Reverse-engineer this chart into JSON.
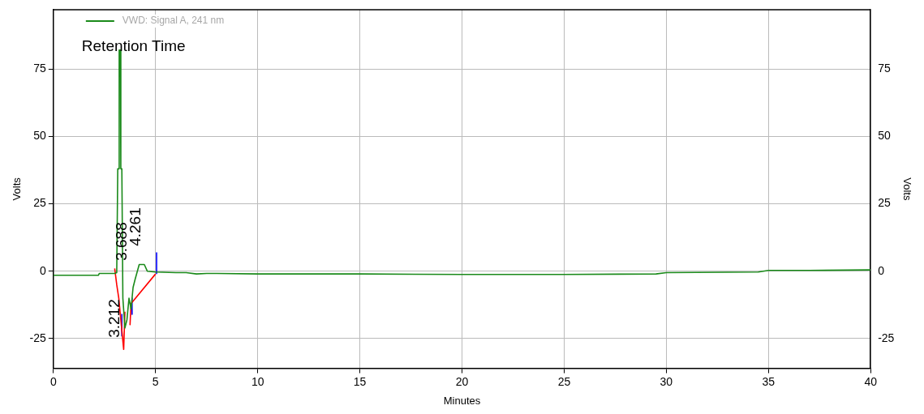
{
  "chart_data": {
    "type": "line",
    "xlabel": "Minutes",
    "ylabel": "Volts",
    "y2label": "Volts",
    "xlim": [
      0,
      40
    ],
    "xticks": [
      0,
      5,
      10,
      15,
      20,
      25,
      30,
      35,
      40
    ],
    "ylim": [
      -36,
      97
    ],
    "yticks": [
      -25,
      0,
      25,
      50,
      75
    ],
    "y2lim": [
      -36,
      97
    ],
    "y2ticks": [
      -25,
      0,
      25,
      50,
      75
    ],
    "grid": true,
    "legend": "top left",
    "marker": "none",
    "line_style": "solid",
    "series": [
      {
        "name": "VWD: Signal A, 241 nm",
        "color": "#1a8a1a",
        "x": [
          0,
          2.2,
          2.25,
          3.0,
          3.1,
          3.15,
          3.2,
          3.22,
          3.28,
          3.3,
          3.35,
          3.4,
          3.5,
          3.6,
          3.7,
          3.8,
          3.9,
          4.0,
          4.2,
          4.45,
          4.6,
          5.0,
          6,
          6.5,
          7,
          7.5,
          8,
          10,
          15,
          20,
          25,
          29.5,
          30,
          34.5,
          35,
          37,
          40
        ],
        "values": [
          -1.5,
          -1.5,
          -0.8,
          -0.8,
          -0.5,
          38,
          38,
          82,
          82,
          38,
          38,
          -10,
          -21,
          -18,
          -10,
          -14,
          -6,
          -3,
          2.5,
          2.5,
          0,
          -0.3,
          -0.5,
          -0.5,
          -1,
          -0.8,
          -0.8,
          -1,
          -1,
          -1.2,
          -1.2,
          -1,
          -0.5,
          -0.3,
          0.3,
          0.3,
          0.5
        ]
      },
      {
        "color": "#ff0000",
        "x": [
          3.0,
          3.1,
          3.2,
          3.3,
          3.44,
          3.5,
          3.6,
          3.75,
          3.8,
          5.0
        ],
        "values": [
          1,
          -5,
          -10,
          -18,
          -29,
          -15,
          null,
          -20,
          -12,
          -1
        ]
      },
      {
        "color": "#0000ff",
        "x": [
          3.35,
          3.35,
          3.6,
          3.85,
          3.85,
          4.9,
          5.05,
          5.05
        ],
        "values": [
          -16,
          -24,
          null,
          -10,
          -16,
          null,
          -1,
          7
        ]
      }
    ],
    "annotations": [
      "Retention Time",
      "3.212",
      "3.688",
      "4.261"
    ]
  }
}
